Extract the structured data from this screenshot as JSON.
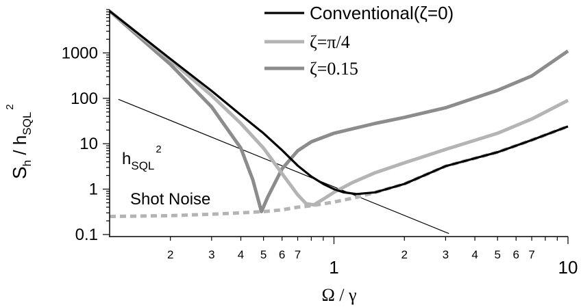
{
  "chart_data": {
    "type": "line",
    "x_scale": "log",
    "y_scale": "log",
    "xlim": [
      0.11,
      10
    ],
    "ylim": [
      0.1,
      9000
    ],
    "x_major_ticks": [
      {
        "value": 1,
        "label": "1"
      },
      {
        "value": 10,
        "label": "10"
      }
    ],
    "x_minor_tick_labels": [
      {
        "value": 0.2,
        "label": "2"
      },
      {
        "value": 0.3,
        "label": "3"
      },
      {
        "value": 0.4,
        "label": "4"
      },
      {
        "value": 0.5,
        "label": "5"
      },
      {
        "value": 0.6,
        "label": "6"
      },
      {
        "value": 0.7,
        "label": "7"
      },
      {
        "value": 2,
        "label": "2"
      },
      {
        "value": 3,
        "label": "3"
      },
      {
        "value": 4,
        "label": "4"
      },
      {
        "value": 5,
        "label": "5"
      },
      {
        "value": 6,
        "label": "6"
      },
      {
        "value": 7,
        "label": "7"
      }
    ],
    "y_ticks": [
      {
        "value": 0.1,
        "label": "0.1"
      },
      {
        "value": 1,
        "label": "1"
      },
      {
        "value": 10,
        "label": "10"
      },
      {
        "value": 100,
        "label": "100"
      },
      {
        "value": 1000,
        "label": "1000"
      }
    ],
    "xlabel": "Ω / γ",
    "ylabel": {
      "main": "S",
      "sub1": "h",
      "sep": " / h",
      "sub2": "SQL",
      "sup": "2"
    },
    "legend": {
      "position": "top-right",
      "entries": [
        {
          "series": "conventional",
          "label": "Conventional(ζ=0)"
        },
        {
          "series": "zeta_pi4",
          "label": "ζ=π/4"
        },
        {
          "series": "zeta_015",
          "label": "ζ=0.15"
        }
      ]
    },
    "annotations": {
      "hsql": {
        "main": "h",
        "sub": "SQL",
        "sup": "2"
      },
      "shot_noise": "Shot Noise"
    },
    "series": [
      {
        "id": "conventional",
        "name": "Conventional(ζ=0)",
        "color": "#000000",
        "style": "solid",
        "points": [
          [
            0.11,
            8300
          ],
          [
            0.2,
            740
          ],
          [
            0.3,
            146
          ],
          [
            0.4,
            43
          ],
          [
            0.5,
            17
          ],
          [
            0.6,
            7.2
          ],
          [
            0.7,
            3.3
          ],
          [
            0.8,
            1.9
          ],
          [
            0.9,
            1.3
          ],
          [
            1.0,
            1.0
          ],
          [
            1.1,
            0.85
          ],
          [
            1.25,
            0.78
          ],
          [
            1.5,
            0.85
          ],
          [
            2,
            1.3
          ],
          [
            3,
            3.2
          ],
          [
            5,
            6.5
          ],
          [
            7,
            12
          ],
          [
            10,
            24
          ]
        ]
      },
      {
        "id": "zeta_pi4",
        "name": "ζ=π/4",
        "color": "#b4b4b4",
        "style": "solid",
        "points": [
          [
            0.11,
            8300
          ],
          [
            0.2,
            700
          ],
          [
            0.3,
            115
          ],
          [
            0.4,
            28
          ],
          [
            0.5,
            8
          ],
          [
            0.6,
            2.2
          ],
          [
            0.7,
            0.75
          ],
          [
            0.76,
            0.48
          ],
          [
            0.82,
            0.45
          ],
          [
            0.9,
            0.6
          ],
          [
            1.0,
            0.85
          ],
          [
            1.2,
            1.4
          ],
          [
            1.5,
            2.3
          ],
          [
            2,
            3.8
          ],
          [
            3,
            7.5
          ],
          [
            5,
            17
          ],
          [
            7,
            35
          ],
          [
            10,
            90
          ]
        ]
      },
      {
        "id": "zeta_015",
        "name": "ζ=0.15",
        "color": "#8c8c8c",
        "style": "solid",
        "points": [
          [
            0.11,
            8300
          ],
          [
            0.2,
            560
          ],
          [
            0.3,
            65
          ],
          [
            0.4,
            8
          ],
          [
            0.45,
            1.6
          ],
          [
            0.49,
            0.32
          ],
          [
            0.52,
            0.65
          ],
          [
            0.6,
            2.8
          ],
          [
            0.7,
            7
          ],
          [
            0.8,
            11
          ],
          [
            1.0,
            17
          ],
          [
            1.5,
            28
          ],
          [
            2,
            38
          ],
          [
            3,
            62
          ],
          [
            5,
            150
          ],
          [
            7,
            310
          ],
          [
            10,
            1100
          ]
        ]
      },
      {
        "id": "shot_noise",
        "name": "Shot Noise",
        "color": "#b4b4b4",
        "style": "dotted",
        "points": [
          [
            0.11,
            0.25
          ],
          [
            0.2,
            0.26
          ],
          [
            0.3,
            0.28
          ],
          [
            0.4,
            0.3
          ],
          [
            0.5,
            0.32
          ],
          [
            0.6,
            0.35
          ],
          [
            0.7,
            0.4
          ],
          [
            0.8,
            0.43
          ],
          [
            1.0,
            0.52
          ],
          [
            1.25,
            0.66
          ],
          [
            1.5,
            0.85
          ],
          [
            2,
            1.3
          ],
          [
            3,
            3.2
          ],
          [
            5,
            6.5
          ],
          [
            7,
            12
          ],
          [
            10,
            24
          ]
        ]
      },
      {
        "id": "hsql",
        "name": "h_SQL^2",
        "color": "#000000",
        "style": "thin",
        "points": [
          [
            0.12,
            95
          ],
          [
            3.1,
            0.105
          ]
        ]
      }
    ]
  }
}
